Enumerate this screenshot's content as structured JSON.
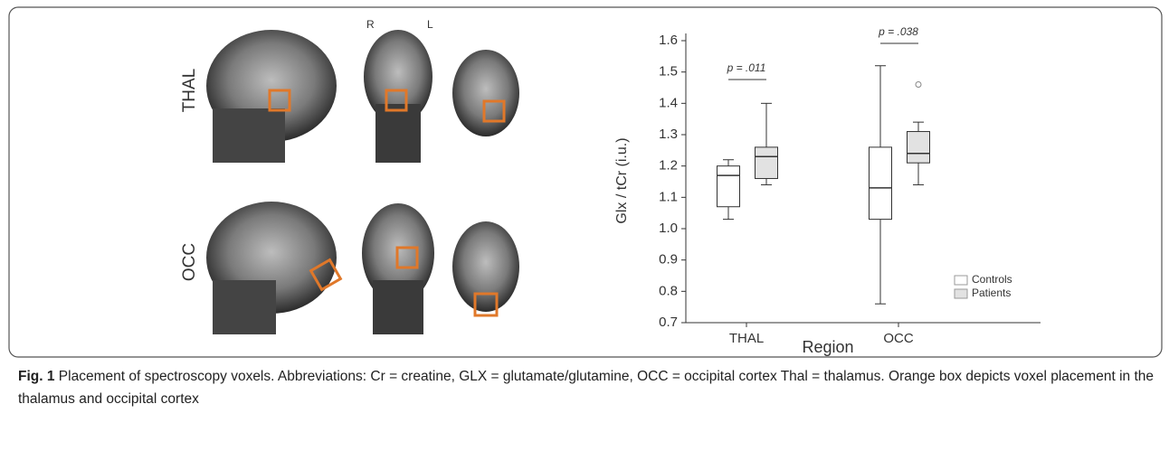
{
  "figure": {
    "panel_labels": {
      "rows": [
        "THAL",
        "OCC"
      ],
      "right": "R",
      "left": "L"
    },
    "chart_data": {
      "type": "box",
      "ylabel": "Glx / tCr (i.u.)",
      "xlabel": "Region",
      "categories": [
        "THAL",
        "OCC"
      ],
      "ylim": [
        0.7,
        1.6
      ],
      "yticks": [
        0.7,
        0.8,
        0.9,
        {
          "value": 1,
          "label": "1.0"
        },
        1.1,
        1.2,
        1.3,
        1.4,
        1.5,
        1.6
      ],
      "annotations": [
        "p = .011",
        "p = .038"
      ],
      "legend": "lower right",
      "series": [
        {
          "name": "Controls",
          "color": "#ffffff",
          "boxes": [
            {
              "min": 1.03,
              "q1": 1.07,
              "median": 1.17,
              "q3": 1.2,
              "max": 1.22
            },
            {
              "min": 0.76,
              "q1": 1.03,
              "median": 1.13,
              "q3": 1.26,
              "max": 1.52
            }
          ]
        },
        {
          "name": "Patients",
          "color": "#e2e2e2",
          "boxes": [
            {
              "min": 1.14,
              "q1": 1.16,
              "median": 1.23,
              "q3": 1.26,
              "max": 1.4
            },
            {
              "min": 1.14,
              "q1": 1.21,
              "median": 1.24,
              "q3": 1.31,
              "max": 1.34,
              "outliers": [
                1.46
              ]
            }
          ]
        }
      ]
    },
    "caption": {
      "label": "Fig. 1",
      "text": "Placement of spectroscopy voxels. Abbreviations: Cr = creatine, GLX = glutamate/glutamine, OCC = occipital cortex Thal = thalamus. Orange box depicts voxel placement in the thalamus and occipital cortex"
    }
  }
}
